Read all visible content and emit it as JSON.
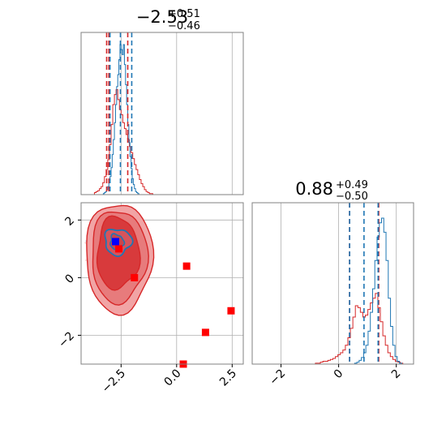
{
  "chart_data": {
    "type": "corner",
    "colors": {
      "blue": "#1f77b4",
      "red": "#d62728",
      "grid": "#b0b0b0",
      "marker_blue": "#0000ff",
      "marker_red": "#ff0000"
    },
    "param1": {
      "title_main": "−2.53",
      "title_sup": "+0.51",
      "title_sub": "−0.46",
      "xlim": [
        -4.3,
        3.0
      ],
      "ticks": [
        -2.5,
        0.0,
        2.5
      ],
      "tick_labels": [
        "−2.5",
        "0.0",
        "2.5"
      ],
      "blue_quantiles": [
        -3.0,
        -2.53,
        -2.02
      ],
      "red_quantiles": [
        -3.15,
        -3.05,
        -2.2
      ]
    },
    "param2": {
      "title_main": "0.88",
      "title_sup": "+0.49",
      "title_sub": "−0.50",
      "xlim": [
        -3.0,
        2.6
      ],
      "ticks": [
        -2,
        0,
        2
      ],
      "tick_labels": [
        "−2",
        "0",
        "2"
      ],
      "blue_quantiles": [
        0.38,
        0.88,
        1.37
      ],
      "red_quantiles": [
        0.38,
        0.88,
        1.37
      ]
    },
    "scatter": {
      "xlim": [
        -4.3,
        3.0
      ],
      "ylim": [
        -3.0,
        2.6
      ],
      "yticks": [
        -2,
        0,
        2
      ],
      "ytick_labels": [
        "−2",
        "0",
        "2"
      ],
      "truth_blue": [
        -2.75,
        1.25
      ],
      "red_markers": [
        [
          -2.75,
          1.25
        ],
        [
          -2.6,
          1.0
        ],
        [
          -1.9,
          0.0
        ],
        [
          0.45,
          0.4
        ],
        [
          1.3,
          -1.9
        ],
        [
          2.45,
          -1.15
        ],
        [
          0.3,
          -3.0
        ]
      ]
    },
    "hist1_blue": [
      0,
      0,
      0,
      0,
      0,
      0,
      1,
      2,
      3,
      5,
      8,
      12,
      18,
      27,
      40,
      55,
      72,
      90,
      108,
      120,
      135,
      150,
      145,
      140,
      150,
      130,
      110,
      90,
      70,
      52,
      38,
      26,
      16,
      10,
      6,
      3,
      2,
      1,
      0,
      0
    ],
    "hist1_red": [
      0,
      0,
      0,
      0,
      2,
      3,
      4,
      6,
      8,
      12,
      18,
      25,
      35,
      50,
      70,
      90,
      100,
      105,
      95,
      85,
      80,
      72,
      66,
      60,
      55,
      48,
      42,
      36,
      30,
      25,
      20,
      15,
      11,
      8,
      5,
      3,
      2,
      1,
      1,
      0
    ],
    "hist2_blue": [
      0,
      0,
      0,
      0,
      0,
      0,
      0,
      0,
      0,
      0,
      0,
      0,
      0,
      0,
      0,
      0,
      0,
      0,
      0,
      0,
      1,
      2,
      4,
      7,
      12,
      20,
      35,
      55,
      80,
      110,
      135,
      150,
      155,
      140,
      110,
      70,
      40,
      20,
      8,
      3,
      1,
      0,
      0,
      0,
      0
    ],
    "hist2_red": [
      0,
      0,
      0,
      0,
      0,
      0,
      0,
      0,
      1,
      1,
      2,
      3,
      3,
      4,
      5,
      6,
      8,
      10,
      12,
      15,
      20,
      28,
      38,
      50,
      62,
      60,
      55,
      50,
      52,
      58,
      65,
      70,
      75,
      60,
      45,
      30,
      20,
      12,
      8,
      5,
      3,
      2,
      1,
      0,
      0
    ]
  }
}
